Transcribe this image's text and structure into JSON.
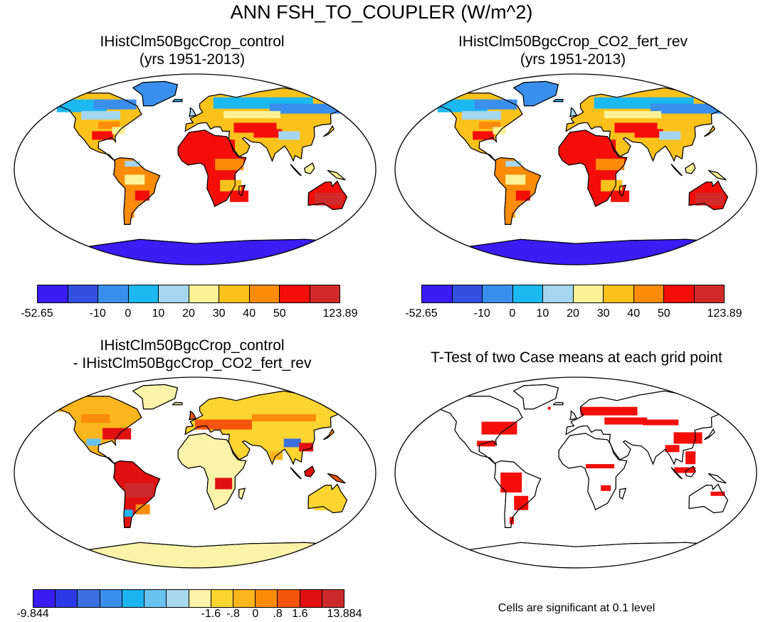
{
  "title": "ANN FSH_TO_COUPLER (W/m^2)",
  "panels": {
    "top_left": {
      "line1": "IHistClm50BgcCrop_control",
      "line2": "(yrs 1951-2013)"
    },
    "top_right": {
      "line1": "IHistClm50BgcCrop_CO2_fert_rev",
      "line2": "(yrs 1951-2013)"
    },
    "bottom_left": {
      "line1": "IHistClm50BgcCrop_control",
      "line2": "- IHistClm50BgcCrop_CO2_fert_rev"
    },
    "bottom_right": {
      "line1": "T-Test of two Case means at each grid point"
    }
  },
  "colorbar_abs": {
    "colors": [
      "#3b1cf5",
      "#3450e0",
      "#3b8fec",
      "#1cb8f0",
      "#a6d6ef",
      "#fbf195",
      "#fcc21c",
      "#fb8c0a",
      "#f40e0a",
      "#d22a2a"
    ],
    "labels": [
      "-52.65",
      "-10",
      "0",
      "10",
      "20",
      "30",
      "40",
      "50",
      "123.89"
    ]
  },
  "colorbar_diff": {
    "colors": [
      "#3b1cf5",
      "#2b3ae6",
      "#3c6fe0",
      "#3a8fec",
      "#1cb4f0",
      "#68c2ef",
      "#a8d7f0",
      "#fbf3a8",
      "#fcd531",
      "#fcb51c",
      "#fb8c0a",
      "#f5550c",
      "#e01010",
      "#cc2a2a"
    ],
    "labels": [
      "-9.844",
      "-1.6",
      "-.8",
      "0",
      ".8",
      "1.6",
      "13.884"
    ]
  },
  "note": "Cells are significant at 0.1 level"
}
